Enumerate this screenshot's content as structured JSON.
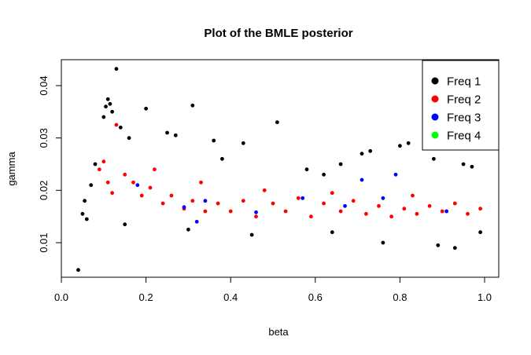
{
  "chart_data": {
    "type": "scatter",
    "title": "Plot of the BMLE posterior",
    "xlabel": "beta",
    "ylabel": "gamma",
    "xlim": [
      0.0,
      1.0
    ],
    "ylim": [
      0.0,
      0.04
    ],
    "x_ticks": [
      0.0,
      0.2,
      0.4,
      0.6,
      0.8,
      1.0
    ],
    "x_tick_labels": [
      "0.0",
      "0.2",
      "0.4",
      "0.6",
      "0.8",
      "1.0"
    ],
    "y_ticks": [
      0.01,
      0.02,
      0.03,
      0.04
    ],
    "y_tick_labels": [
      "0.01",
      "0.02",
      "0.03",
      "0.04"
    ],
    "grid": false,
    "legend_position": "top-right",
    "series": [
      {
        "name": "Freq 1",
        "color": "#000000",
        "points": [
          [
            0.04,
            0.0048
          ],
          [
            0.13,
            0.0432
          ],
          [
            0.31,
            0.0362
          ],
          [
            0.51,
            0.033
          ],
          [
            0.2,
            0.0356
          ],
          [
            0.11,
            0.0374
          ],
          [
            0.105,
            0.036
          ],
          [
            0.12,
            0.035
          ],
          [
            0.1,
            0.034
          ],
          [
            0.115,
            0.0365
          ],
          [
            0.25,
            0.031
          ],
          [
            0.27,
            0.0305
          ],
          [
            0.36,
            0.0295
          ],
          [
            0.43,
            0.029
          ],
          [
            0.73,
            0.0275
          ],
          [
            0.71,
            0.027
          ],
          [
            0.8,
            0.0285
          ],
          [
            0.82,
            0.029
          ],
          [
            0.88,
            0.026
          ],
          [
            0.95,
            0.025
          ],
          [
            0.05,
            0.0155
          ],
          [
            0.06,
            0.0145
          ],
          [
            0.055,
            0.018
          ],
          [
            0.07,
            0.021
          ],
          [
            0.08,
            0.025
          ],
          [
            0.62,
            0.023
          ],
          [
            0.64,
            0.012
          ],
          [
            0.76,
            0.01
          ],
          [
            0.89,
            0.0095
          ],
          [
            0.93,
            0.009
          ],
          [
            0.99,
            0.012
          ],
          [
            0.97,
            0.0245
          ],
          [
            0.45,
            0.0115
          ],
          [
            0.3,
            0.0125
          ],
          [
            0.15,
            0.0135
          ],
          [
            0.58,
            0.024
          ],
          [
            0.66,
            0.025
          ],
          [
            0.38,
            0.026
          ],
          [
            0.16,
            0.03
          ],
          [
            0.14,
            0.032
          ]
        ]
      },
      {
        "name": "Freq 2",
        "color": "#ff0000",
        "points": [
          [
            0.13,
            0.0325
          ],
          [
            0.1,
            0.0255
          ],
          [
            0.09,
            0.024
          ],
          [
            0.11,
            0.0215
          ],
          [
            0.12,
            0.0195
          ],
          [
            0.15,
            0.023
          ],
          [
            0.17,
            0.0215
          ],
          [
            0.19,
            0.019
          ],
          [
            0.21,
            0.0205
          ],
          [
            0.24,
            0.0175
          ],
          [
            0.26,
            0.019
          ],
          [
            0.29,
            0.0165
          ],
          [
            0.31,
            0.018
          ],
          [
            0.34,
            0.016
          ],
          [
            0.37,
            0.0175
          ],
          [
            0.4,
            0.016
          ],
          [
            0.43,
            0.018
          ],
          [
            0.46,
            0.015
          ],
          [
            0.5,
            0.0175
          ],
          [
            0.53,
            0.016
          ],
          [
            0.56,
            0.0185
          ],
          [
            0.59,
            0.015
          ],
          [
            0.62,
            0.0175
          ],
          [
            0.66,
            0.016
          ],
          [
            0.69,
            0.018
          ],
          [
            0.72,
            0.0155
          ],
          [
            0.75,
            0.017
          ],
          [
            0.78,
            0.015
          ],
          [
            0.81,
            0.0165
          ],
          [
            0.84,
            0.0155
          ],
          [
            0.87,
            0.017
          ],
          [
            0.9,
            0.016
          ],
          [
            0.93,
            0.0175
          ],
          [
            0.96,
            0.0155
          ],
          [
            0.99,
            0.0165
          ],
          [
            0.22,
            0.024
          ],
          [
            0.33,
            0.0215
          ],
          [
            0.48,
            0.02
          ],
          [
            0.64,
            0.0195
          ],
          [
            0.83,
            0.019
          ]
        ]
      },
      {
        "name": "Freq 3",
        "color": "#0000ff",
        "points": [
          [
            0.18,
            0.021
          ],
          [
            0.29,
            0.0168
          ],
          [
            0.32,
            0.014
          ],
          [
            0.34,
            0.018
          ],
          [
            0.46,
            0.0158
          ],
          [
            0.57,
            0.0185
          ],
          [
            0.67,
            0.017
          ],
          [
            0.71,
            0.022
          ],
          [
            0.76,
            0.0185
          ],
          [
            0.79,
            0.023
          ],
          [
            0.91,
            0.016
          ]
        ]
      },
      {
        "name": "Freq 4",
        "color": "#00ff00",
        "points": []
      }
    ]
  }
}
